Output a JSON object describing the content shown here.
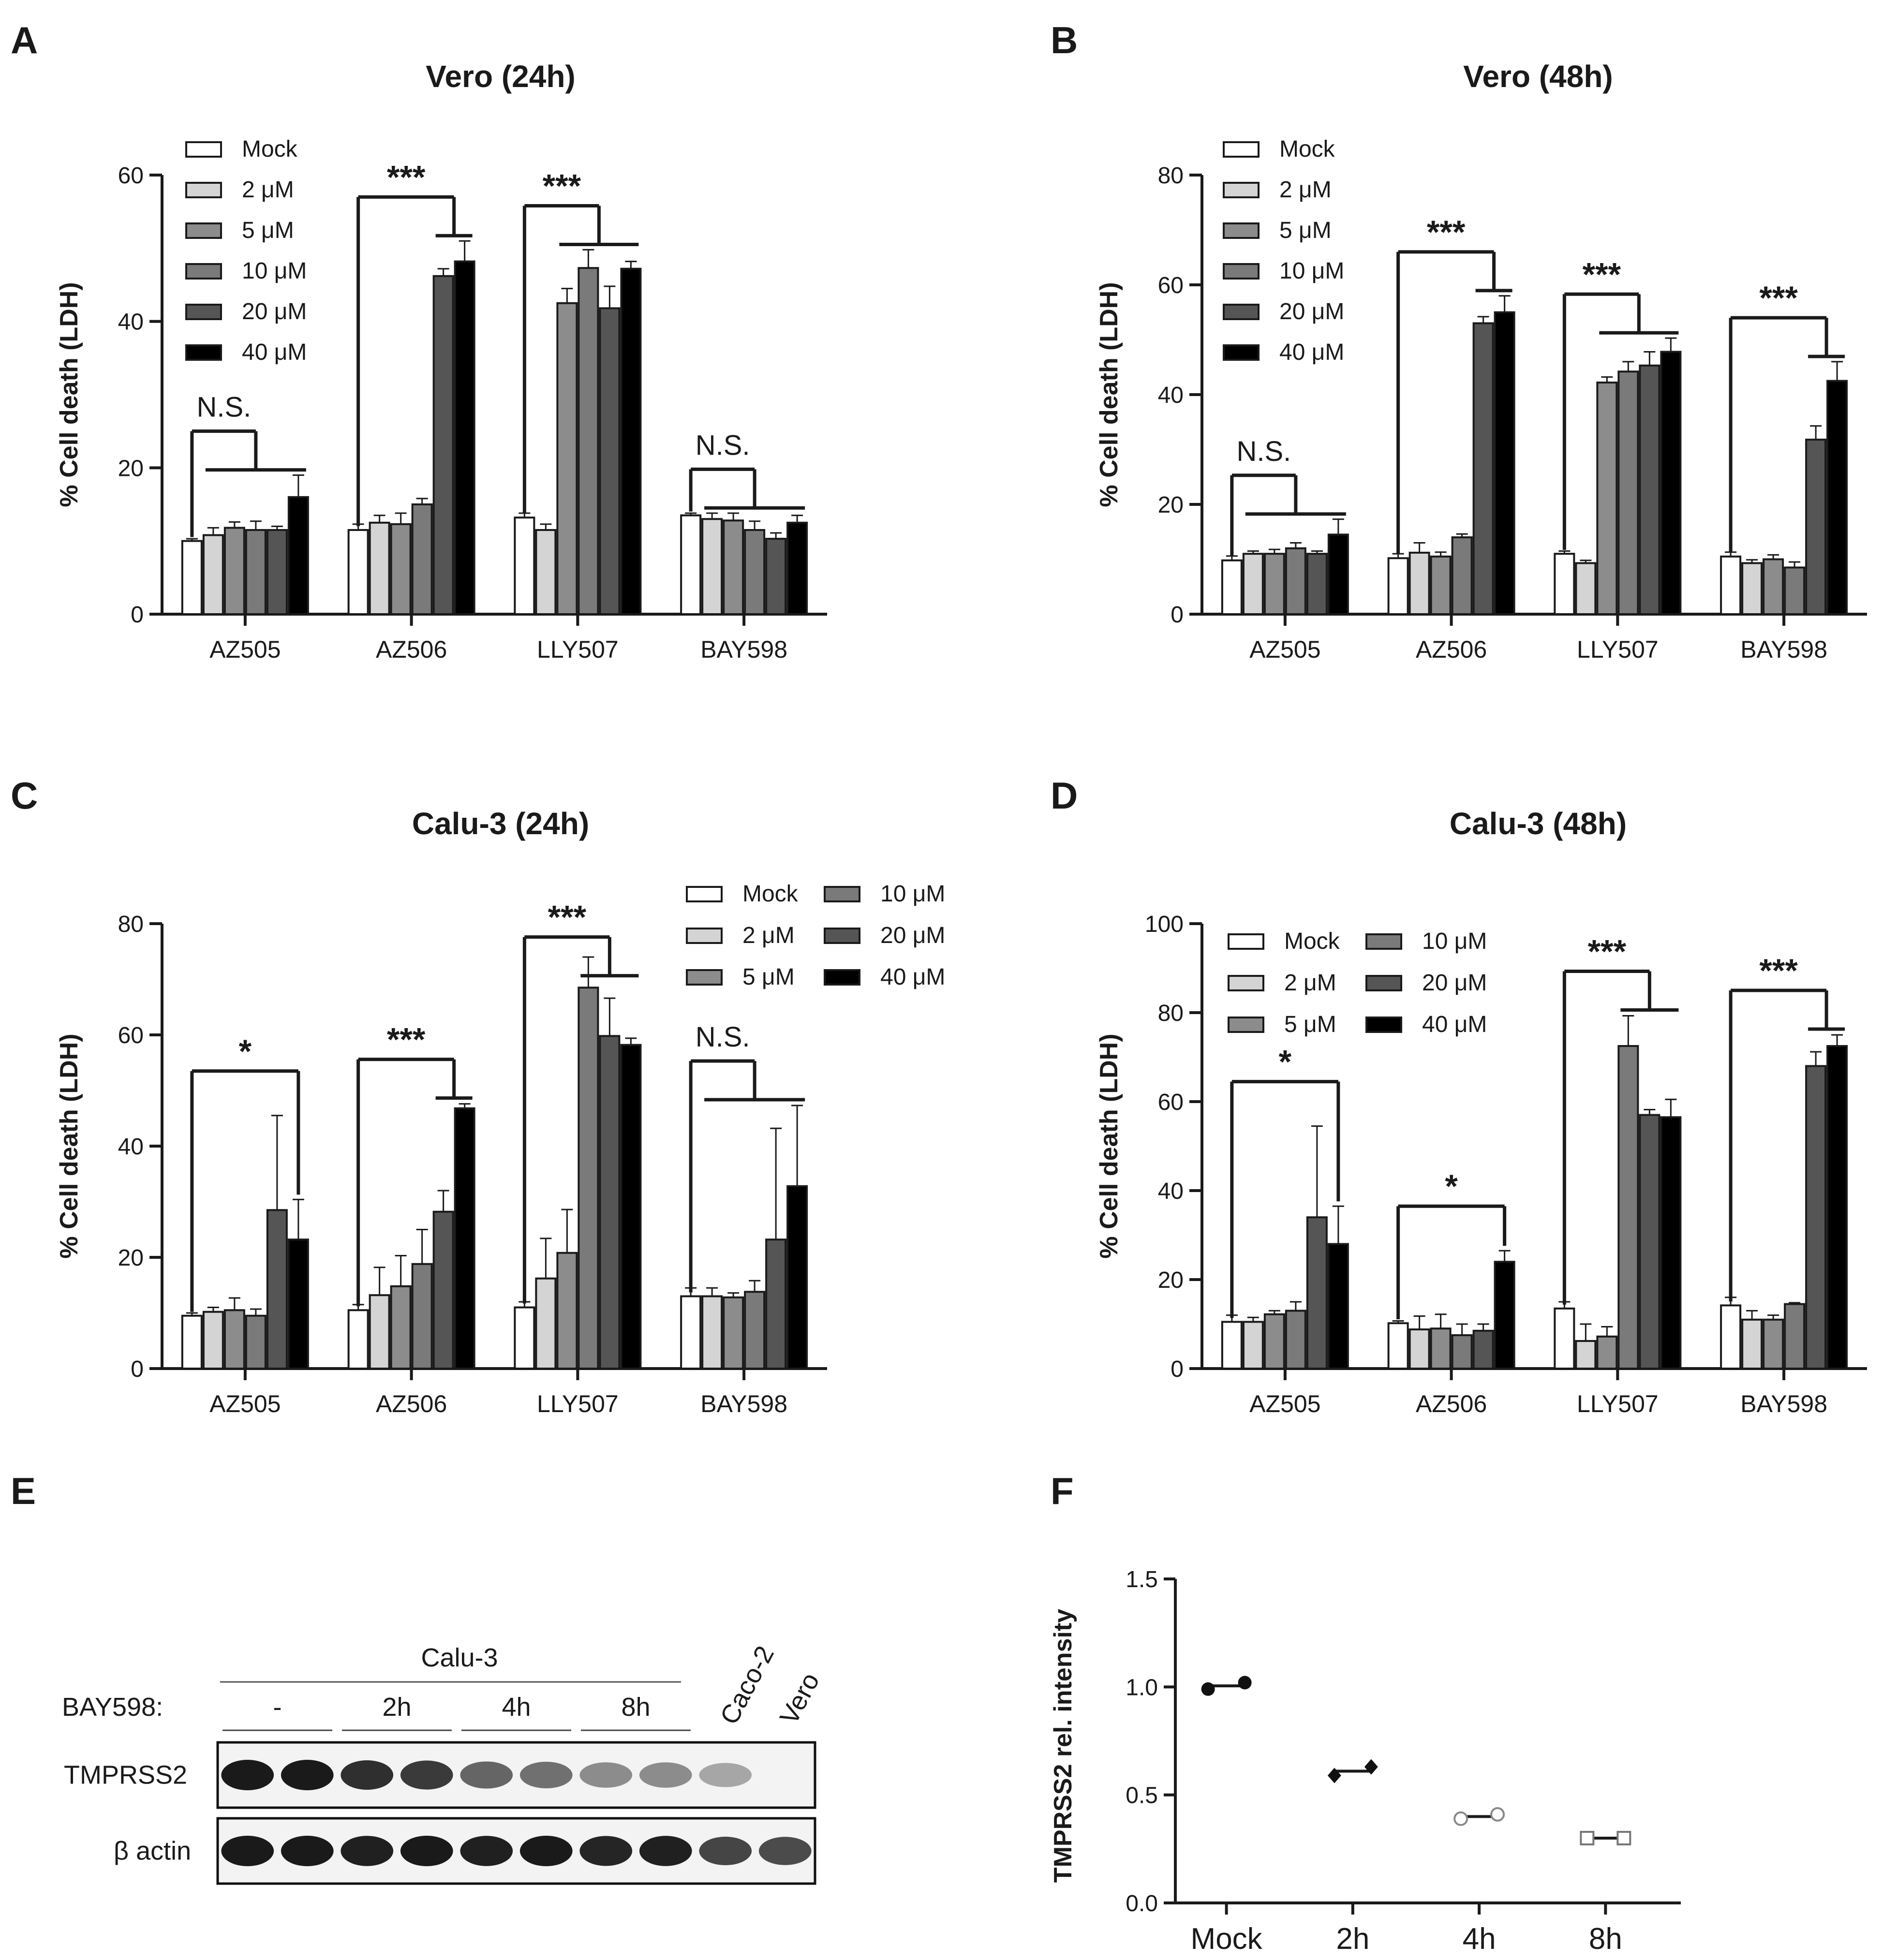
{
  "colors": {
    "mock": "#ffffff",
    "2uM": "#d4d4d4",
    "5uM": "#8c8c8c",
    "10uM": "#7a7a7a",
    "20uM": "#555555",
    "40uM": "#000000",
    "axis": "#1a1a1a"
  },
  "legend_labels": [
    "Mock",
    "2 μM",
    "5 μM",
    "10 μM",
    "20 μM",
    "40 μM"
  ],
  "chart_data": [
    {
      "panel": "A",
      "type": "bar",
      "title": "Vero (24h)",
      "ylabel": "% Cell death (LDH)",
      "xlabel": "",
      "ylim": [
        0,
        60
      ],
      "yticks": [
        0,
        20,
        40,
        60
      ],
      "categories": [
        "AZ505",
        "AZ506",
        "LLY507",
        "BAY598"
      ],
      "legend_position": "top-left",
      "series": [
        {
          "name": "Mock",
          "values": [
            10.0,
            11.5,
            13.2,
            13.5
          ],
          "errors": [
            0.3,
            0.8,
            0.6,
            0.3
          ]
        },
        {
          "name": "2 μM",
          "values": [
            10.8,
            12.5,
            11.5,
            13.0
          ],
          "errors": [
            1.0,
            1.0,
            0.8,
            0.8
          ]
        },
        {
          "name": "5 μM",
          "values": [
            11.8,
            12.3,
            42.5,
            12.8
          ],
          "errors": [
            0.8,
            1.5,
            2.0,
            1.0
          ]
        },
        {
          "name": "10 μM",
          "values": [
            11.5,
            15.0,
            47.3,
            11.5
          ],
          "errors": [
            1.2,
            0.8,
            2.5,
            1.2
          ]
        },
        {
          "name": "20 μM",
          "values": [
            11.5,
            46.2,
            41.8,
            10.3
          ],
          "errors": [
            0.5,
            1.0,
            3.0,
            0.8
          ]
        },
        {
          "name": "40 μM",
          "values": [
            16.0,
            48.2,
            47.2,
            12.5
          ],
          "errors": [
            3.0,
            2.8,
            1.0,
            1.0
          ]
        }
      ],
      "significance": [
        {
          "category": "AZ505",
          "label": "N.S.",
          "from": 0,
          "to": [
            1,
            5
          ]
        },
        {
          "category": "AZ506",
          "label": "***",
          "from": 0,
          "to": [
            4,
            5
          ]
        },
        {
          "category": "LLY507",
          "label": "***",
          "from": 0,
          "to": [
            2,
            5
          ]
        },
        {
          "category": "BAY598",
          "label": "N.S.",
          "from": 0,
          "to": [
            1,
            5
          ]
        }
      ]
    },
    {
      "panel": "B",
      "type": "bar",
      "title": "Vero (48h)",
      "ylabel": "% Cell death (LDH)",
      "xlabel": "",
      "ylim": [
        0,
        80
      ],
      "yticks": [
        0,
        20,
        40,
        60,
        80
      ],
      "categories": [
        "AZ505",
        "AZ506",
        "LLY507",
        "BAY598"
      ],
      "legend_position": "top-left",
      "series": [
        {
          "name": "Mock",
          "values": [
            9.8,
            10.2,
            11.0,
            10.5
          ],
          "errors": [
            0.8,
            0.8,
            0.5,
            0.8
          ]
        },
        {
          "name": "2 μM",
          "values": [
            11.0,
            11.2,
            9.3,
            9.3
          ],
          "errors": [
            0.5,
            1.8,
            0.5,
            0.6
          ]
        },
        {
          "name": "5 μM",
          "values": [
            11.0,
            10.5,
            42.2,
            10.0
          ],
          "errors": [
            0.8,
            0.8,
            1.0,
            0.8
          ]
        },
        {
          "name": "10 μM",
          "values": [
            12.0,
            14.0,
            44.2,
            8.5
          ],
          "errors": [
            1.0,
            0.6,
            1.8,
            1.0
          ]
        },
        {
          "name": "20 μM",
          "values": [
            11.0,
            53.0,
            45.3,
            31.8
          ],
          "errors": [
            0.5,
            1.2,
            2.5,
            2.5
          ]
        },
        {
          "name": "40 μM",
          "values": [
            14.5,
            55.0,
            47.8,
            42.5
          ],
          "errors": [
            2.8,
            3.0,
            2.5,
            3.5
          ]
        }
      ],
      "significance": [
        {
          "category": "AZ505",
          "label": "N.S.",
          "from": 0,
          "to": [
            1,
            5
          ]
        },
        {
          "category": "AZ506",
          "label": "***",
          "from": 0,
          "to": [
            4,
            5
          ]
        },
        {
          "category": "LLY507",
          "label": "***",
          "from": 0,
          "to": [
            2,
            5
          ]
        },
        {
          "category": "BAY598",
          "label": "***",
          "from": 0,
          "to": [
            4,
            5
          ]
        }
      ]
    },
    {
      "panel": "C",
      "type": "bar",
      "title": "Calu-3 (24h)",
      "ylabel": "% Cell death (LDH)",
      "xlabel": "",
      "ylim": [
        0,
        80
      ],
      "yticks": [
        0,
        20,
        40,
        60,
        80
      ],
      "categories": [
        "AZ505",
        "AZ506",
        "LLY507",
        "BAY598"
      ],
      "legend_position": "top-right",
      "series": [
        {
          "name": "Mock",
          "values": [
            9.5,
            10.5,
            11.0,
            13.0
          ],
          "errors": [
            0.5,
            1.0,
            1.0,
            1.5
          ]
        },
        {
          "name": "2 μM",
          "values": [
            10.2,
            13.2,
            16.2,
            13.0
          ],
          "errors": [
            0.8,
            5.0,
            7.2,
            1.5
          ]
        },
        {
          "name": "5 μM",
          "values": [
            10.5,
            14.8,
            20.8,
            12.8
          ],
          "errors": [
            2.2,
            5.5,
            7.8,
            0.8
          ]
        },
        {
          "name": "10 μM",
          "values": [
            9.5,
            18.8,
            68.5,
            13.8
          ],
          "errors": [
            1.2,
            6.2,
            5.5,
            2.0
          ]
        },
        {
          "name": "20 μM",
          "values": [
            28.5,
            28.2,
            59.8,
            23.2
          ],
          "errors": [
            17.0,
            3.8,
            6.8,
            20.0
          ]
        },
        {
          "name": "40 μM",
          "values": [
            23.2,
            46.8,
            58.2,
            32.8
          ],
          "errors": [
            7.2,
            0.8,
            1.2,
            14.5
          ]
        }
      ],
      "significance": [
        {
          "category": "AZ505",
          "label": "*",
          "from": 0,
          "to": [
            5,
            5
          ]
        },
        {
          "category": "AZ506",
          "label": "***",
          "from": 0,
          "to": [
            4,
            5
          ]
        },
        {
          "category": "LLY507",
          "label": "***",
          "from": 0,
          "to": [
            3,
            5
          ]
        },
        {
          "category": "BAY598",
          "label": "N.S.",
          "from": 0,
          "to": [
            1,
            5
          ]
        }
      ]
    },
    {
      "panel": "D",
      "type": "bar",
      "title": "Calu-3 (48h)",
      "ylabel": "% Cell death (LDH)",
      "xlabel": "",
      "ylim": [
        0,
        100
      ],
      "yticks": [
        0,
        20,
        40,
        60,
        80,
        100
      ],
      "categories": [
        "AZ505",
        "AZ506",
        "LLY507",
        "BAY598"
      ],
      "legend_position": "top-left",
      "series": [
        {
          "name": "Mock",
          "values": [
            10.5,
            10.2,
            13.5,
            14.2
          ],
          "errors": [
            1.5,
            0.5,
            1.5,
            1.8
          ]
        },
        {
          "name": "2 μM",
          "values": [
            10.5,
            8.8,
            6.2,
            11.0
          ],
          "errors": [
            1.0,
            3.0,
            3.8,
            2.0
          ]
        },
        {
          "name": "5 μM",
          "values": [
            12.2,
            9.0,
            7.2,
            11.0
          ],
          "errors": [
            0.8,
            3.2,
            2.2,
            1.0
          ]
        },
        {
          "name": "10 μM",
          "values": [
            13.0,
            7.5,
            72.5,
            14.5
          ],
          "errors": [
            2.0,
            2.5,
            6.8,
            0.3
          ]
        },
        {
          "name": "20 μM",
          "values": [
            34.0,
            8.5,
            57.0,
            68.0
          ],
          "errors": [
            20.5,
            1.5,
            1.2,
            3.2
          ]
        },
        {
          "name": "40 μM",
          "values": [
            28.0,
            24.0,
            56.5,
            72.5
          ],
          "errors": [
            8.5,
            2.5,
            4.0,
            2.5
          ]
        }
      ],
      "significance": [
        {
          "category": "AZ505",
          "label": "*",
          "from": 0,
          "to": [
            5,
            5
          ]
        },
        {
          "category": "AZ506",
          "label": "*",
          "from": 0,
          "to": [
            5,
            5
          ]
        },
        {
          "category": "LLY507",
          "label": "***",
          "from": 0,
          "to": [
            3,
            5
          ]
        },
        {
          "category": "BAY598",
          "label": "***",
          "from": 0,
          "to": [
            4,
            5
          ]
        }
      ]
    },
    {
      "panel": "F",
      "type": "scatter",
      "title": "",
      "ylabel": "TMPRSS2 rel. intensity",
      "xlabel": "",
      "ylim": [
        0.0,
        1.5
      ],
      "yticks": [
        "0.0",
        "0.5",
        "1.0",
        "1.5"
      ],
      "categories": [
        "Mock",
        "2h",
        "4h",
        "8h"
      ],
      "series": [
        {
          "name": "Mock",
          "marker": "circle-filled",
          "values": [
            0.99,
            1.02
          ]
        },
        {
          "name": "2h",
          "marker": "diamond-filled",
          "values": [
            0.59,
            0.63
          ]
        },
        {
          "name": "4h",
          "marker": "circle-open",
          "values": [
            0.39,
            0.41
          ]
        },
        {
          "name": "8h",
          "marker": "square-open",
          "values": [
            0.3,
            0.3
          ]
        }
      ]
    }
  ],
  "blot": {
    "panel": "E",
    "group_label": "Calu-3",
    "treatment_label": "BAY598:",
    "treatment_groups": [
      "-",
      "2h",
      "4h",
      "8h"
    ],
    "extra_lanes": [
      "Caco-2",
      "Vero"
    ],
    "rows": [
      {
        "label": "TMPRSS2",
        "intensities": [
          0.95,
          0.95,
          0.85,
          0.8,
          0.6,
          0.55,
          0.42,
          0.42,
          0.3,
          0.0
        ]
      },
      {
        "label": "β actin",
        "intensities": [
          0.95,
          0.95,
          0.92,
          0.95,
          0.92,
          0.95,
          0.9,
          0.92,
          0.75,
          0.72
        ]
      }
    ]
  }
}
